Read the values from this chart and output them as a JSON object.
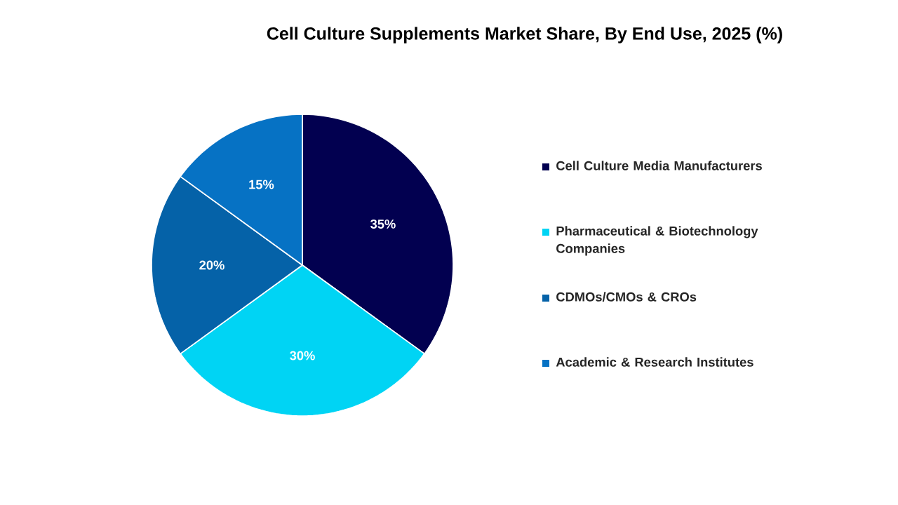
{
  "chart_data": {
    "type": "pie",
    "title": "Cell Culture Supplements Market Share, By End Use, 2025 (%)",
    "categories": [
      "Cell Culture Media Manufacturers",
      "Pharmaceutical & Biotechnology Companies",
      "CDMOs/CMOs & CROs",
      "Academic & Research Institutes"
    ],
    "values": [
      35,
      30,
      20,
      15
    ],
    "colors": [
      "#020050",
      "#00d4f4",
      "#0562a8",
      "#0672c4"
    ],
    "value_labels": [
      "35%",
      "30%",
      "20%",
      "15%"
    ],
    "legend": "right"
  }
}
